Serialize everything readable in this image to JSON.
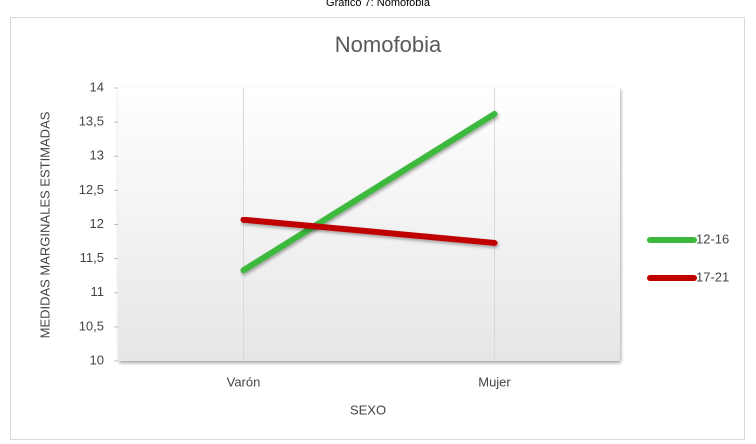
{
  "caption": "Gráfico 7: Nomofobia",
  "chart_data": {
    "type": "line",
    "title": "Nomofobia",
    "x_label": "SEXO",
    "y_label": "MEDIDAS MARGINALES ESTIMADAS",
    "categories": [
      "Varón",
      "Mujer"
    ],
    "series": [
      {
        "name": "12-16",
        "color": "#3cb93c",
        "values": [
          11.33,
          13.62
        ]
      },
      {
        "name": "17-21",
        "color": "#c00000",
        "values": [
          12.07,
          11.73
        ]
      }
    ],
    "ylim": [
      10,
      14
    ],
    "yticks": [
      10,
      {
        "value": 10.5,
        "label": "10,5"
      },
      11,
      {
        "value": 11.5,
        "label": "11,5"
      },
      12,
      {
        "value": 12.5,
        "label": "12,5"
      },
      13,
      {
        "value": 13.5,
        "label": "13,5"
      },
      14
    ],
    "grid": true,
    "legend": "right"
  }
}
